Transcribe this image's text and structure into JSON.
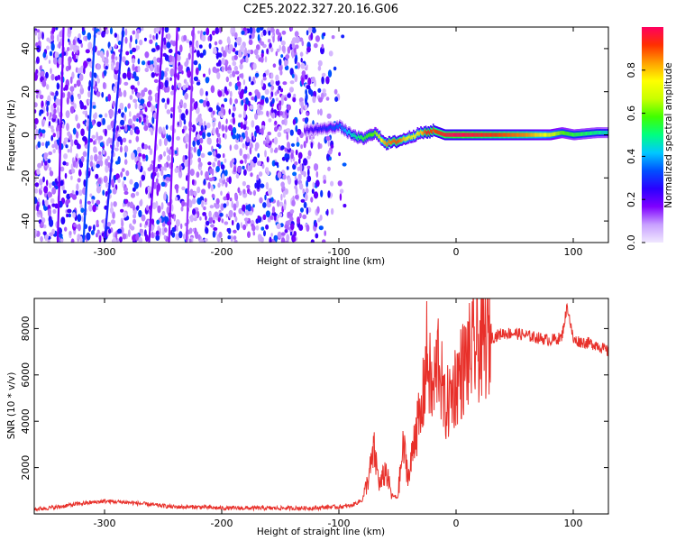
{
  "title": "C2E5.2022.327.20.16.G06",
  "chart_data": [
    {
      "type": "heatmap",
      "xlabel": "Height of straight line (km)",
      "ylabel": "Frequency (Hz)",
      "xlim": [
        -360,
        130
      ],
      "ylim": [
        -50,
        50
      ],
      "x_ticks": [
        -300,
        -200,
        -100,
        0,
        100
      ],
      "y_ticks": [
        -40,
        -20,
        0,
        20,
        40
      ],
      "colorbar": {
        "label": "Normalized spectral amplitude",
        "range": [
          0,
          1
        ],
        "ticks": [
          0.0,
          0.2,
          0.4,
          0.6,
          0.8
        ],
        "colors": [
          "#f0e8ff",
          "#c8a0ff",
          "#7f00ff",
          "#2a00ff",
          "#0050ff",
          "#00c8ff",
          "#00ff80",
          "#40ff00",
          "#c8ff00",
          "#ffff00",
          "#ffa000",
          "#ff3000",
          "#ff0060"
        ]
      },
      "signal_track": {
        "x": [
          -130,
          -110,
          -100,
          -90,
          -80,
          -70,
          -60,
          -50,
          -40,
          -30,
          -25,
          -20,
          -10,
          0,
          20,
          40,
          60,
          80,
          90,
          100,
          120,
          130
        ],
        "freq": [
          2,
          3,
          4,
          0,
          -2,
          1,
          -4,
          -3,
          -1,
          1,
          1,
          2,
          0,
          0,
          0,
          0,
          0,
          0,
          1,
          0,
          1,
          1
        ],
        "amplitude": [
          0.2,
          0.3,
          0.35,
          0.45,
          0.55,
          0.6,
          0.85,
          0.9,
          0.7,
          0.8,
          0.95,
          0.9,
          0.95,
          1.0,
          0.95,
          0.9,
          0.85,
          0.7,
          0.6,
          0.55,
          0.5,
          0.45
        ]
      },
      "noise_region_x": [
        -360,
        -100
      ]
    },
    {
      "type": "line",
      "xlabel": "Height of straight line (km)",
      "ylabel": "SNR (10 * v/v)",
      "xlim": [
        -360,
        130
      ],
      "ylim": [
        0,
        9300
      ],
      "x_ticks": [
        -300,
        -200,
        -100,
        0,
        100
      ],
      "y_ticks": [
        2000,
        4000,
        6000,
        8000
      ],
      "color": "#e8302a",
      "series": [
        {
          "x": [
            -360,
            -340,
            -320,
            -300,
            -280,
            -260,
            -240,
            -220,
            -200,
            -180,
            -160,
            -140,
            -120,
            -110,
            -100,
            -90,
            -80,
            -75,
            -70,
            -65,
            -60,
            -55,
            -50,
            -45,
            -40,
            -35,
            -30,
            -25,
            -20,
            -15,
            -10,
            -5,
            0,
            5,
            10,
            20,
            30,
            40,
            50,
            60,
            70,
            80,
            90,
            95,
            100,
            110,
            120,
            130
          ],
          "y": [
            200,
            300,
            450,
            550,
            500,
            400,
            300,
            300,
            250,
            250,
            250,
            250,
            250,
            300,
            300,
            350,
            600,
            1500,
            2700,
            1200,
            1900,
            800,
            700,
            2900,
            1500,
            3700,
            4000,
            6900,
            5000,
            7000,
            4500,
            5000,
            5700,
            6200,
            6700,
            7300,
            7600,
            7800,
            7800,
            7700,
            7600,
            7500,
            7600,
            9000,
            7500,
            7400,
            7300,
            7000
          ]
        }
      ]
    }
  ]
}
